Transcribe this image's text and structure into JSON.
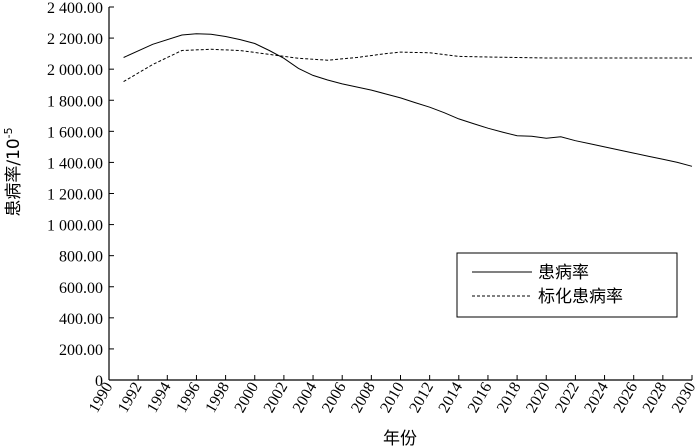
{
  "chart_data": {
    "type": "line",
    "title": "",
    "xlabel": "年份",
    "ylabel_main": "患病率/10",
    "ylabel_sup": "-5",
    "xlim": [
      1990,
      2030
    ],
    "ylim": [
      0,
      2400
    ],
    "x_ticks": [
      "1990",
      "1992",
      "1994",
      "1996",
      "1998",
      "2000",
      "2002",
      "2004",
      "2006",
      "2008",
      "2010",
      "2012",
      "2014",
      "2016",
      "2018",
      "2020",
      "2022",
      "2024",
      "2026",
      "2028",
      "2030"
    ],
    "y_ticks": [
      "0",
      "200.00",
      "400.00",
      "600.00",
      "800.00",
      "1 000.00",
      "1 200.00",
      "1 400.00",
      "1 600.00",
      "1 800.00",
      "2 000.00",
      "2 200.00",
      "2 400.00"
    ],
    "grid": false,
    "legend_position": "bottom-right",
    "series": [
      {
        "name": "患病率",
        "style": "solid",
        "color": "#000000",
        "points": [
          [
            1991,
            2075
          ],
          [
            1993,
            2160
          ],
          [
            1995,
            2220
          ],
          [
            1996,
            2228
          ],
          [
            1997,
            2225
          ],
          [
            1998,
            2210
          ],
          [
            1999,
            2190
          ],
          [
            2000,
            2165
          ],
          [
            2001,
            2120
          ],
          [
            2002,
            2070
          ],
          [
            2003,
            2005
          ],
          [
            2004,
            1960
          ],
          [
            2005,
            1930
          ],
          [
            2006,
            1905
          ],
          [
            2007,
            1885
          ],
          [
            2008,
            1865
          ],
          [
            2009,
            1840
          ],
          [
            2010,
            1815
          ],
          [
            2011,
            1785
          ],
          [
            2012,
            1755
          ],
          [
            2013,
            1720
          ],
          [
            2014,
            1680
          ],
          [
            2015,
            1650
          ],
          [
            2016,
            1620
          ],
          [
            2017,
            1595
          ],
          [
            2018,
            1572
          ],
          [
            2019,
            1568
          ],
          [
            2020,
            1555
          ],
          [
            2021,
            1565
          ],
          [
            2022,
            1540
          ],
          [
            2023,
            1520
          ],
          [
            2024,
            1500
          ],
          [
            2025,
            1480
          ],
          [
            2026,
            1460
          ],
          [
            2027,
            1440
          ],
          [
            2028,
            1420
          ],
          [
            2029,
            1400
          ],
          [
            2030,
            1375
          ]
        ]
      },
      {
        "name": "标化患病率",
        "style": "dashed",
        "color": "#000000",
        "points": [
          [
            1991,
            1920
          ],
          [
            1993,
            2030
          ],
          [
            1995,
            2120
          ],
          [
            1997,
            2128
          ],
          [
            1999,
            2120
          ],
          [
            2001,
            2095
          ],
          [
            2003,
            2070
          ],
          [
            2005,
            2058
          ],
          [
            2007,
            2075
          ],
          [
            2009,
            2100
          ],
          [
            2010,
            2110
          ],
          [
            2012,
            2105
          ],
          [
            2014,
            2082
          ],
          [
            2016,
            2078
          ],
          [
            2018,
            2075
          ],
          [
            2020,
            2072
          ],
          [
            2022,
            2072
          ],
          [
            2024,
            2072
          ],
          [
            2026,
            2072
          ],
          [
            2028,
            2072
          ],
          [
            2030,
            2072
          ]
        ]
      }
    ]
  }
}
